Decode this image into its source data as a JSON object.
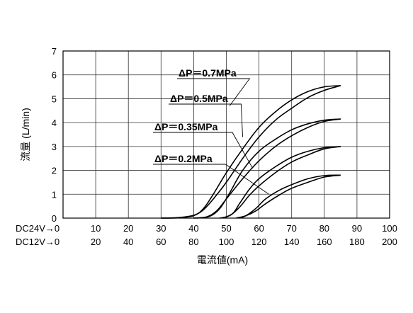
{
  "chart_data": {
    "type": "line",
    "ylabel": "流量 (L/min)",
    "xlabel": "電流値(mA)",
    "ylim": [
      0,
      7
    ],
    "yticks": [
      "0",
      "1",
      "2",
      "3",
      "4",
      "5",
      "6",
      "7"
    ],
    "xlim": [
      0,
      100
    ],
    "grid": true,
    "x_rows": [
      {
        "label": "DC24V→0",
        "ticks": [
          "10",
          "20",
          "30",
          "40",
          "50",
          "60",
          "70",
          "80",
          "90",
          "100"
        ]
      },
      {
        "label": "DC12V→0",
        "ticks": [
          "20",
          "40",
          "60",
          "80",
          "100",
          "120",
          "140",
          "160",
          "180",
          "200"
        ]
      }
    ],
    "series": [
      {
        "name": "ΔP＝0.7MPa",
        "increasing": [
          [
            30,
            0
          ],
          [
            35,
            0.02
          ],
          [
            40,
            0.12
          ],
          [
            43,
            0.35
          ],
          [
            46,
            0.8
          ],
          [
            50,
            1.5
          ],
          [
            55,
            2.5
          ],
          [
            60,
            3.4
          ],
          [
            65,
            4.1
          ],
          [
            70,
            4.6
          ],
          [
            75,
            5.05
          ],
          [
            80,
            5.35
          ],
          [
            85,
            5.55
          ]
        ],
        "decreasing": [
          [
            85,
            5.55
          ],
          [
            80,
            5.5
          ],
          [
            75,
            5.3
          ],
          [
            70,
            4.95
          ],
          [
            65,
            4.45
          ],
          [
            60,
            3.8
          ],
          [
            55,
            2.9
          ],
          [
            50,
            1.9
          ],
          [
            46,
            1.0
          ],
          [
            43,
            0.4
          ],
          [
            40,
            0.1
          ],
          [
            35,
            0.01
          ],
          [
            30,
            0
          ]
        ]
      },
      {
        "name": "ΔP＝0.5MPa",
        "increasing": [
          [
            40,
            0
          ],
          [
            44,
            0.05
          ],
          [
            47,
            0.3
          ],
          [
            50,
            0.8
          ],
          [
            55,
            1.65
          ],
          [
            60,
            2.4
          ],
          [
            65,
            3.0
          ],
          [
            70,
            3.45
          ],
          [
            75,
            3.8
          ],
          [
            80,
            4.05
          ],
          [
            85,
            4.15
          ]
        ],
        "decreasing": [
          [
            85,
            4.15
          ],
          [
            80,
            4.1
          ],
          [
            75,
            3.95
          ],
          [
            70,
            3.7
          ],
          [
            65,
            3.3
          ],
          [
            60,
            2.8
          ],
          [
            55,
            2.0
          ],
          [
            51,
            1.05
          ],
          [
            48,
            0.4
          ],
          [
            45,
            0.08
          ],
          [
            41,
            0
          ]
        ]
      },
      {
        "name": "ΔP＝0.35MPa",
        "increasing": [
          [
            48,
            0
          ],
          [
            51,
            0.1
          ],
          [
            54,
            0.45
          ],
          [
            57,
            0.95
          ],
          [
            60,
            1.35
          ],
          [
            65,
            1.9
          ],
          [
            70,
            2.35
          ],
          [
            75,
            2.65
          ],
          [
            80,
            2.9
          ],
          [
            85,
            3.0
          ]
        ],
        "decreasing": [
          [
            85,
            3.0
          ],
          [
            80,
            2.95
          ],
          [
            75,
            2.8
          ],
          [
            70,
            2.55
          ],
          [
            65,
            2.15
          ],
          [
            60,
            1.65
          ],
          [
            57,
            1.2
          ],
          [
            54,
            0.6
          ],
          [
            52,
            0.2
          ],
          [
            49,
            0
          ]
        ]
      },
      {
        "name": "ΔP＝0.2MPa",
        "increasing": [
          [
            53,
            0
          ],
          [
            56,
            0.1
          ],
          [
            59,
            0.3
          ],
          [
            62,
            0.6
          ],
          [
            66,
            0.95
          ],
          [
            70,
            1.25
          ],
          [
            75,
            1.5
          ],
          [
            80,
            1.72
          ],
          [
            85,
            1.8
          ]
        ],
        "decreasing": [
          [
            85,
            1.8
          ],
          [
            80,
            1.78
          ],
          [
            75,
            1.65
          ],
          [
            70,
            1.4
          ],
          [
            66,
            1.15
          ],
          [
            62,
            0.8
          ],
          [
            59,
            0.4
          ],
          [
            56,
            0.1
          ],
          [
            54,
            0
          ]
        ]
      }
    ]
  }
}
